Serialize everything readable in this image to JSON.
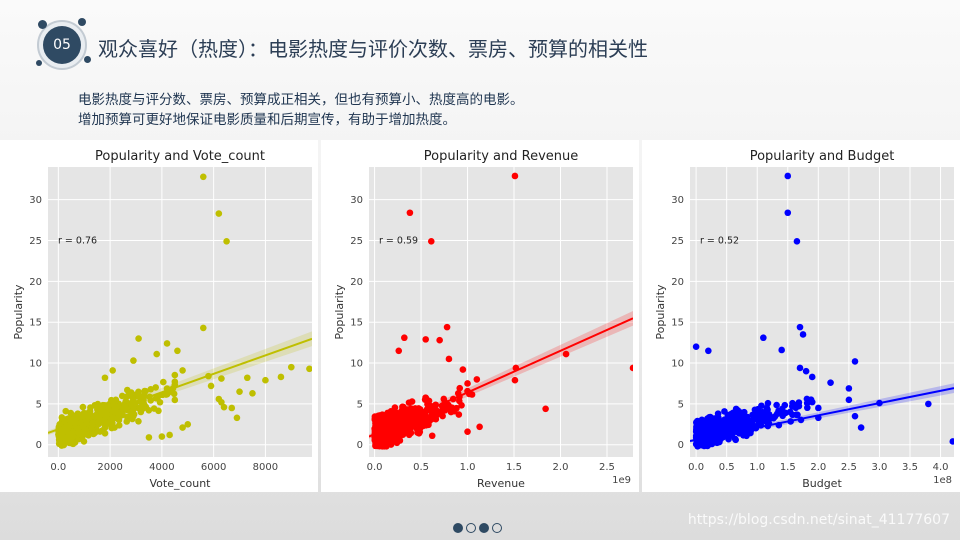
{
  "header": {
    "badge": "05",
    "title": "观众喜好（热度）：电影热度与评价次数、票房、预算的相关性",
    "lines": [
      "电影热度与评分数、票房、预算成正相关，但也有预算小、热度高的电影。",
      "增加预算可更好地保证电影质量和后期宣传，有助于增加热度。"
    ]
  },
  "pager": {
    "total": 4,
    "active": [
      0,
      2
    ]
  },
  "watermark": "https://blog.csdn.net/sinat_41177607",
  "colors": {
    "navy": "#2f4a63",
    "plot_bg": "#e5e5e5"
  },
  "chart_data": [
    {
      "type": "scatter",
      "title": "Popularity and Vote_count",
      "xlabel": "Vote_count",
      "ylabel": "Popularity",
      "annotation": "r = 0.76",
      "color": "#bfbf00",
      "xlim": [
        -400,
        9800
      ],
      "ylim": [
        -1.5,
        34
      ],
      "xticks": [
        0,
        2000,
        4000,
        6000,
        8000
      ],
      "yticks": [
        0,
        5,
        10,
        15,
        20,
        25,
        30
      ],
      "x_offset_label": "",
      "grid": true,
      "regression": {
        "slope": 0.00113,
        "intercept": 1.9,
        "ci": 0.9
      },
      "points": [
        [
          5600,
          32.8
        ],
        [
          6200,
          28.3
        ],
        [
          6500,
          24.9
        ],
        [
          5600,
          14.3
        ],
        [
          9000,
          9.5
        ],
        [
          9700,
          9.3
        ],
        [
          7300,
          8.2
        ],
        [
          6300,
          8.1
        ],
        [
          5800,
          8.4
        ],
        [
          5900,
          7.2
        ],
        [
          6200,
          5.6
        ],
        [
          6300,
          5.2
        ],
        [
          6400,
          4.6
        ],
        [
          6700,
          4.5
        ],
        [
          6900,
          3.3
        ],
        [
          7000,
          6.5
        ],
        [
          7500,
          6.3
        ],
        [
          8000,
          7.9
        ],
        [
          8600,
          8.3
        ],
        [
          4800,
          9.1
        ],
        [
          4600,
          11.5
        ],
        [
          4200,
          12.4
        ],
        [
          3800,
          11.1
        ],
        [
          3100,
          13.0
        ],
        [
          2900,
          10.3
        ],
        [
          2100,
          9.1
        ],
        [
          1800,
          8.2
        ],
        [
          4800,
          2.1
        ],
        [
          5000,
          2.5
        ],
        [
          4300,
          1.2
        ],
        [
          4000,
          1.0
        ],
        [
          3500,
          0.9
        ]
      ],
      "cloud": {
        "count": 620,
        "xmax": 4500,
        "xdecay": 1200,
        "slope": 0.0012,
        "base": 0.9,
        "spread": 1.6
      }
    },
    {
      "type": "scatter",
      "title": "Popularity and Revenue",
      "xlabel": "Revenue",
      "ylabel": "Popularity",
      "annotation": "r = 0.59",
      "color": "#ff0000",
      "xlim": [
        -0.06,
        2.78
      ],
      "ylim": [
        -1.5,
        34
      ],
      "xticks": [
        0.0,
        0.5,
        1.0,
        1.5,
        2.0,
        2.5
      ],
      "yticks": [
        0,
        5,
        10,
        15,
        20,
        25,
        30
      ],
      "x_offset_label": "1e9",
      "grid": true,
      "regression": {
        "slope": 5.1,
        "intercept": 1.3,
        "ci": 0.9
      },
      "points": [
        [
          1.51,
          32.9
        ],
        [
          0.38,
          28.4
        ],
        [
          0.61,
          24.9
        ],
        [
          0.78,
          14.4
        ],
        [
          0.7,
          12.8
        ],
        [
          0.55,
          12.9
        ],
        [
          0.26,
          11.5
        ],
        [
          0.32,
          13.1
        ],
        [
          1.52,
          9.4
        ],
        [
          1.51,
          7.9
        ],
        [
          2.06,
          11.1
        ],
        [
          2.78,
          9.4
        ],
        [
          1.84,
          4.4
        ],
        [
          0.95,
          9.2
        ],
        [
          1.0,
          7.5
        ],
        [
          1.1,
          8.0
        ],
        [
          0.9,
          6.3
        ],
        [
          0.8,
          10.5
        ],
        [
          1.13,
          2.2
        ],
        [
          1.0,
          1.6
        ],
        [
          0.62,
          1.1
        ]
      ],
      "cloud": {
        "count": 620,
        "xmax": 1.1,
        "xdecay": 0.22,
        "slope": 4.5,
        "base": 0.9,
        "spread": 1.8
      }
    },
    {
      "type": "scatter",
      "title": "Popularity and Budget",
      "xlabel": "Budget",
      "ylabel": "Popularity",
      "annotation": "r = 0.52",
      "color": "#0000ff",
      "xlim": [
        -0.1,
        4.22
      ],
      "ylim": [
        -1.5,
        34
      ],
      "xticks": [
        0.0,
        0.5,
        1.0,
        1.5,
        2.0,
        2.5,
        3.0,
        3.5,
        4.0
      ],
      "xtick_labels": [
        "0.0",
        "0.5",
        "1.0",
        "1.5",
        "2.0",
        "2.5",
        "3.0",
        "3.5",
        "4.0"
      ],
      "yticks": [
        0,
        5,
        10,
        15,
        20,
        25,
        30
      ],
      "x_offset_label": "1e8",
      "grid": true,
      "regression": {
        "slope": 1.5,
        "intercept": 0.6,
        "ci": 0.6
      },
      "points": [
        [
          1.5,
          32.9
        ],
        [
          1.5,
          28.4
        ],
        [
          1.65,
          24.9
        ],
        [
          1.7,
          14.4
        ],
        [
          1.75,
          13.5
        ],
        [
          1.1,
          13.1
        ],
        [
          1.4,
          11.6
        ],
        [
          0.0,
          12.0
        ],
        [
          0.2,
          11.5
        ],
        [
          2.6,
          10.2
        ],
        [
          1.7,
          9.4
        ],
        [
          1.8,
          9.0
        ],
        [
          1.9,
          8.3
        ],
        [
          2.2,
          7.6
        ],
        [
          2.5,
          6.9
        ],
        [
          2.5,
          5.5
        ],
        [
          2.6,
          3.5
        ],
        [
          2.7,
          2.1
        ],
        [
          3.0,
          5.1
        ],
        [
          3.8,
          5.0
        ],
        [
          4.2,
          0.4
        ],
        [
          2.0,
          4.5
        ],
        [
          2.0,
          3.3
        ]
      ],
      "cloud": {
        "count": 620,
        "xmax": 1.9,
        "xdecay": 0.4,
        "slope": 1.9,
        "base": 0.8,
        "spread": 1.5
      }
    }
  ]
}
